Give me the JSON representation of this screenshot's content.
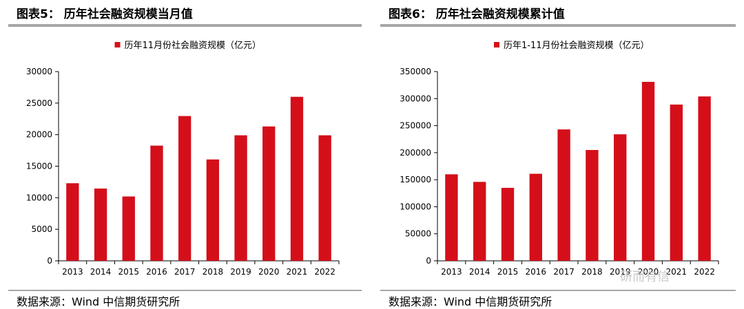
{
  "left": {
    "figure_title": "图表5：  历年社会融资规模当月值",
    "source": "数据来源：Wind 中信期货研究所"
  },
  "right": {
    "figure_title": "图表6：  历年社会融资规模累计值",
    "source": "数据来源：Wind 中信期货研究所"
  },
  "watermark": "研而有信",
  "chart_data": [
    {
      "type": "bar",
      "title": "",
      "legend": "历年11月份社会融资规模（亿元）",
      "legend_position": "top-center",
      "categories": [
        "2013",
        "2014",
        "2015",
        "2016",
        "2017",
        "2018",
        "2019",
        "2020",
        "2021",
        "2022"
      ],
      "series": [
        {
          "name": "历年11月份社会融资规模（亿元）",
          "values": [
            12300,
            11460,
            10200,
            18260,
            22950,
            16070,
            19900,
            21300,
            26000,
            19900
          ],
          "color": "#d40f1a"
        }
      ],
      "ylim": [
        0,
        30000
      ],
      "yticks": [
        0,
        5000,
        10000,
        15000,
        20000,
        25000,
        30000
      ],
      "grid": false
    },
    {
      "type": "bar",
      "title": "",
      "legend": "历年1-11月份社会融资规模（亿元）",
      "legend_position": "top-center",
      "categories": [
        "2013",
        "2014",
        "2015",
        "2016",
        "2017",
        "2018",
        "2019",
        "2020",
        "2021",
        "2022"
      ],
      "series": [
        {
          "name": "历年1-11月份社会融资规模（亿元）",
          "values": [
            160000,
            146000,
            135000,
            161000,
            243000,
            205000,
            234000,
            331000,
            289000,
            304000
          ],
          "color": "#d40f1a"
        }
      ],
      "ylim": [
        0,
        350000
      ],
      "yticks": [
        0,
        50000,
        100000,
        150000,
        200000,
        250000,
        300000,
        350000
      ],
      "grid": false
    }
  ]
}
